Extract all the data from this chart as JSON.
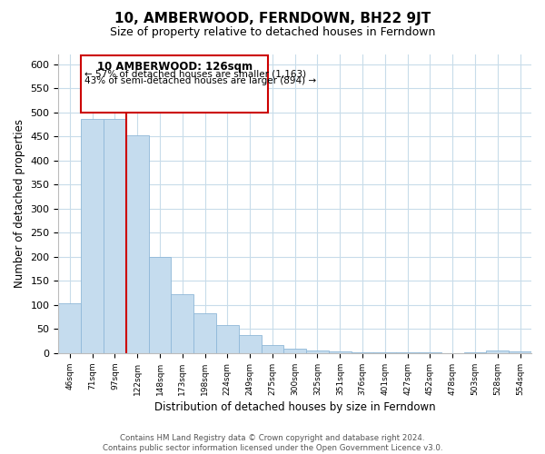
{
  "title": "10, AMBERWOOD, FERNDOWN, BH22 9JT",
  "subtitle": "Size of property relative to detached houses in Ferndown",
  "xlabel": "Distribution of detached houses by size in Ferndown",
  "ylabel": "Number of detached properties",
  "bar_values": [
    103,
    487,
    487,
    452,
    200,
    122,
    82,
    58,
    38,
    17,
    10,
    5,
    3,
    2,
    1,
    1,
    1,
    0,
    1,
    5,
    3
  ],
  "bar_labels": [
    "46sqm",
    "71sqm",
    "97sqm",
    "122sqm",
    "148sqm",
    "173sqm",
    "198sqm",
    "224sqm",
    "249sqm",
    "275sqm",
    "300sqm",
    "325sqm",
    "351sqm",
    "376sqm",
    "401sqm",
    "427sqm",
    "452sqm",
    "478sqm",
    "503sqm",
    "528sqm",
    "554sqm"
  ],
  "bar_color": "#c5dcee",
  "bar_edge_color": "#8fb8d8",
  "vline_color": "#cc0000",
  "annotation_box_edge": "#cc0000",
  "annotation_line1": "10 AMBERWOOD: 126sqm",
  "annotation_line2": "← 57% of detached houses are smaller (1,163)",
  "annotation_line3": "43% of semi-detached houses are larger (894) →",
  "ylim": [
    0,
    620
  ],
  "yticks": [
    0,
    50,
    100,
    150,
    200,
    250,
    300,
    350,
    400,
    450,
    500,
    550,
    600
  ],
  "footer_line1": "Contains HM Land Registry data © Crown copyright and database right 2024.",
  "footer_line2": "Contains public sector information licensed under the Open Government Licence v3.0.",
  "bg_color": "#ffffff",
  "grid_color": "#c8dcea"
}
